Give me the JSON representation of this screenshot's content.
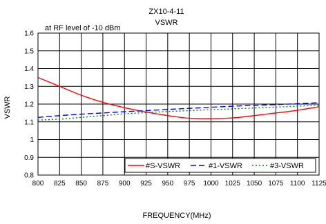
{
  "chart_data": {
    "type": "line",
    "title": "ZX10-4-11",
    "subtitle": "VSWR",
    "annotation": "at RF level of -10 dBm",
    "xlabel": "FREQUENCY(MHz)",
    "ylabel": "VSWR",
    "xlim": [
      800,
      1125
    ],
    "ylim": [
      0.8,
      1.6
    ],
    "x_ticks": [
      800,
      825,
      850,
      875,
      900,
      925,
      950,
      975,
      1000,
      1025,
      1050,
      1075,
      1100,
      1125
    ],
    "y_ticks": [
      0.8,
      0.9,
      1.0,
      1.1,
      1.2,
      1.3,
      1.4,
      1.5,
      1.6
    ],
    "x_tick_labels": [
      "800",
      "825",
      "850",
      "875",
      "900",
      "925",
      "950",
      "975",
      "1000",
      "1025",
      "1050",
      "1075",
      "1100",
      "1125"
    ],
    "y_tick_labels": [
      "0.8",
      "0.9",
      "1",
      "1.1",
      "1.2",
      "1.3",
      "1.4",
      "1.5",
      "1.6"
    ],
    "grid": {
      "x": true,
      "y": true
    },
    "legend_position": "bottom-right",
    "series": [
      {
        "name": "#S-VSWR",
        "color": "#ff0000",
        "dash": "solid",
        "x": [
          800,
          825,
          850,
          875,
          900,
          925,
          950,
          975,
          1000,
          1025,
          1050,
          1075,
          1100,
          1125
        ],
        "y": [
          1.35,
          1.3,
          1.25,
          1.21,
          1.18,
          1.155,
          1.135,
          1.12,
          1.118,
          1.122,
          1.135,
          1.15,
          1.165,
          1.185
        ]
      },
      {
        "name": "#1-VSWR",
        "color": "#0000ff",
        "dash": "dash",
        "x": [
          800,
          825,
          850,
          875,
          900,
          925,
          950,
          975,
          1000,
          1025,
          1050,
          1075,
          1100,
          1125
        ],
        "y": [
          1.125,
          1.135,
          1.143,
          1.15,
          1.157,
          1.163,
          1.17,
          1.176,
          1.182,
          1.188,
          1.193,
          1.197,
          1.202,
          1.208
        ]
      },
      {
        "name": "#3-VSWR",
        "color": "#008000",
        "dash": "dot",
        "x": [
          800,
          825,
          850,
          875,
          900,
          925,
          950,
          975,
          1000,
          1025,
          1050,
          1075,
          1100,
          1125
        ],
        "y": [
          1.11,
          1.115,
          1.125,
          1.135,
          1.145,
          1.152,
          1.158,
          1.163,
          1.168,
          1.173,
          1.178,
          1.183,
          1.188,
          1.194
        ]
      }
    ]
  }
}
